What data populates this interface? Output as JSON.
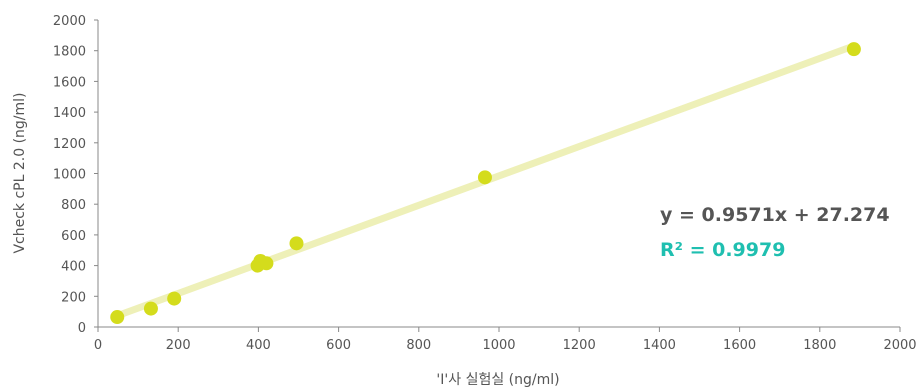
{
  "chart_data": {
    "type": "scatter",
    "xlabel": "'I'사 실험실 (ng/ml)",
    "ylabel": "Vcheck cPL 2.0 (ng/ml)",
    "xlim": [
      0,
      2000
    ],
    "ylim": [
      0,
      2000
    ],
    "x_ticks": [
      0,
      200,
      400,
      600,
      800,
      1000,
      1200,
      1400,
      1600,
      1800,
      2000
    ],
    "y_ticks": [
      0,
      200,
      400,
      600,
      800,
      1000,
      1200,
      1400,
      1600,
      1800,
      2000
    ],
    "grid": false,
    "series": [
      {
        "points": [
          {
            "x": 48,
            "y": 65
          },
          {
            "x": 132,
            "y": 120
          },
          {
            "x": 190,
            "y": 185
          },
          {
            "x": 398,
            "y": 400
          },
          {
            "x": 405,
            "y": 430
          },
          {
            "x": 420,
            "y": 415
          },
          {
            "x": 495,
            "y": 545
          },
          {
            "x": 965,
            "y": 975
          },
          {
            "x": 1885,
            "y": 1810
          }
        ]
      }
    ],
    "trendline": {
      "slope": 0.9571,
      "intercept": 27.274,
      "x_range": [
        48,
        1885
      ]
    },
    "annotations": {
      "equation": "y = 0.9571x + 27.274",
      "r_squared": "R² = 0.9979"
    },
    "colors": {
      "points": "#d4dc1c",
      "trendline": "#eef0b8",
      "axis": "#888888",
      "equation": "#555555",
      "r_squared": "#1fbfb0"
    }
  }
}
